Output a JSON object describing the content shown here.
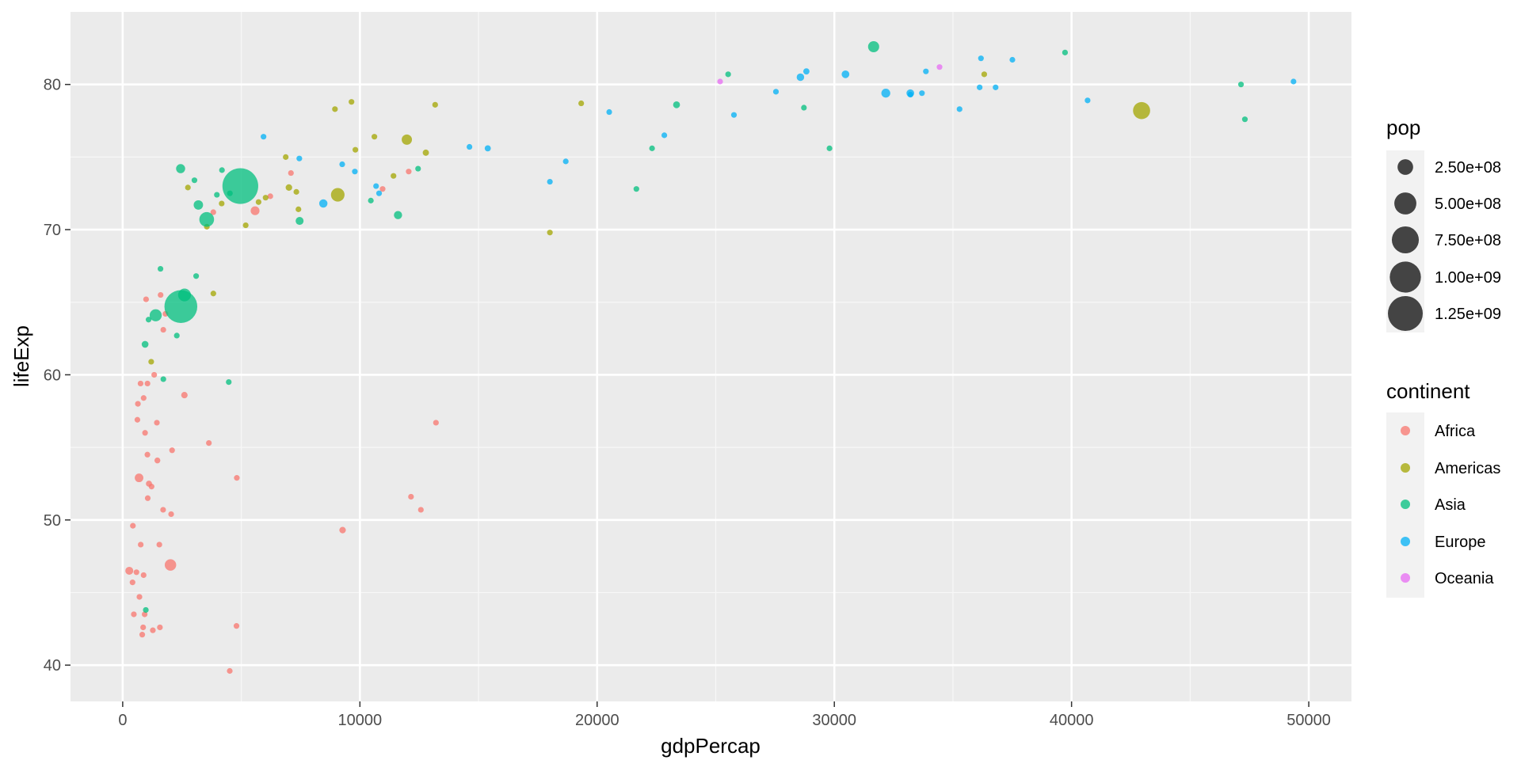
{
  "chart_data": {
    "type": "scatter",
    "title": "",
    "xlabel": "gdpPercap",
    "ylabel": "lifeExp",
    "xlim": [
      -2200,
      51800
    ],
    "ylim": [
      37.5,
      85
    ],
    "x_ticks": [
      0,
      10000,
      20000,
      30000,
      40000,
      50000
    ],
    "y_ticks": [
      40,
      50,
      60,
      70,
      80
    ],
    "grid": true,
    "legend_placement": "right",
    "size_legend": {
      "title": "pop",
      "labels": [
        "2.50e+08",
        "5.00e+08",
        "7.50e+08",
        "1.00e+09",
        "1.25e+09"
      ],
      "values": [
        250000000,
        500000000,
        750000000,
        1000000000,
        1250000000
      ]
    },
    "color_legend": {
      "title": "continent",
      "labels": [
        "Africa",
        "Americas",
        "Asia",
        "Europe",
        "Oceania"
      ]
    },
    "colors": {
      "Africa": "#F8766D",
      "Americas": "#A3A500",
      "Asia": "#00BF7D",
      "Europe": "#00B0F6",
      "Oceania": "#E76BF3"
    },
    "series": [
      {
        "name": "Africa",
        "points": [
          [
            6223,
            72.3,
            33000000
          ],
          [
            4797,
            42.7,
            12400000
          ],
          [
            1441,
            56.7,
            8100000
          ],
          [
            12570,
            50.7,
            1600000
          ],
          [
            1217,
            52.3,
            14300000
          ],
          [
            430,
            49.6,
            8400000
          ],
          [
            2042,
            50.4,
            17700000
          ],
          [
            706,
            44.7,
            4400000
          ],
          [
            1704,
            50.7,
            10200000
          ],
          [
            986,
            65.2,
            700000
          ],
          [
            278,
            46.5,
            64600000
          ],
          [
            3633,
            55.3,
            3800000
          ],
          [
            1545,
            48.3,
            18000000
          ],
          [
            2082,
            54.8,
            500000
          ],
          [
            5581,
            71.3,
            80300000
          ],
          [
            12154,
            51.6,
            600000
          ],
          [
            641,
            58.0,
            4900000
          ],
          [
            690,
            52.9,
            76500000
          ],
          [
            13206,
            56.7,
            1500000
          ],
          [
            753,
            59.4,
            1700000
          ],
          [
            1328,
            60.0,
            22900000
          ],
          [
            943,
            56.0,
            9900000
          ],
          [
            580,
            46.4,
            1500000
          ],
          [
            1463,
            54.1,
            35600000
          ],
          [
            1569,
            42.6,
            2000000
          ],
          [
            415,
            45.7,
            3200000
          ],
          [
            12057,
            74.0,
            6000000
          ],
          [
            1045,
            59.4,
            19200000
          ],
          [
            760,
            48.3,
            13300000
          ],
          [
            1042,
            54.5,
            12000000
          ],
          [
            1803,
            64.2,
            3300000
          ],
          [
            10957,
            72.8,
            1200000
          ],
          [
            3820,
            71.2,
            33800000
          ],
          [
            824,
            42.1,
            19900000
          ],
          [
            4811,
            52.9,
            2100000
          ],
          [
            620,
            56.9,
            12900000
          ],
          [
            2014,
            46.9,
            135000000
          ],
          [
            882,
            46.2,
            8900000
          ],
          [
            1598,
            65.5,
            200000
          ],
          [
            1712,
            63.1,
            12300000
          ],
          [
            862,
            42.6,
            6100000
          ],
          [
            926,
            43.5,
            9100000
          ],
          [
            9270,
            49.3,
            43900000
          ],
          [
            2602,
            58.6,
            42300000
          ],
          [
            4513,
            39.6,
            1100000
          ],
          [
            1107,
            52.5,
            38100000
          ],
          [
            883,
            58.4,
            5700000
          ],
          [
            7093,
            73.9,
            10300000
          ],
          [
            1056,
            51.5,
            29200000
          ],
          [
            1271,
            42.4,
            11700000
          ],
          [
            470,
            43.5,
            12300000
          ]
        ]
      },
      {
        "name": "Americas",
        "points": [
          [
            12779,
            75.3,
            40300000
          ],
          [
            3822,
            65.6,
            9100000
          ],
          [
            9066,
            72.4,
            190000000
          ],
          [
            36319,
            80.7,
            33400000
          ],
          [
            13172,
            78.6,
            16300000
          ],
          [
            7007,
            72.9,
            44200000
          ],
          [
            9645,
            78.8,
            4100000
          ],
          [
            8948,
            78.3,
            11400000
          ],
          [
            6025,
            72.2,
            9300000
          ],
          [
            6873,
            75.0,
            13800000
          ],
          [
            5728,
            71.9,
            6900000
          ],
          [
            5186,
            70.3,
            12600000
          ],
          [
            1202,
            60.9,
            8500000
          ],
          [
            3548,
            70.2,
            7500000
          ],
          [
            7321,
            72.6,
            2800000
          ],
          [
            11978,
            76.2,
            108700000
          ],
          [
            2749,
            72.9,
            5700000
          ],
          [
            9809,
            75.5,
            3200000
          ],
          [
            4173,
            71.8,
            6700000
          ],
          [
            7409,
            71.4,
            28700000
          ],
          [
            19329,
            78.7,
            3900000
          ],
          [
            18009,
            69.8,
            1100000
          ],
          [
            42952,
            78.2,
            301100000
          ],
          [
            10611,
            76.4,
            3400000
          ],
          [
            11416,
            73.7,
            26100000
          ]
        ]
      },
      {
        "name": "Asia",
        "points": [
          [
            975,
            43.8,
            31900000
          ],
          [
            29796,
            75.6,
            700000
          ],
          [
            1391,
            64.1,
            150400000
          ],
          [
            1714,
            59.7,
            14100000
          ],
          [
            4959,
            73.0,
            1318700000
          ],
          [
            39725,
            82.2,
            6900000
          ],
          [
            2452,
            64.7,
            1110400000
          ],
          [
            3541,
            70.7,
            223500000
          ],
          [
            11606,
            71.0,
            69500000
          ],
          [
            4471,
            59.5,
            27500000
          ],
          [
            25523,
            80.7,
            6400000
          ],
          [
            31656,
            82.6,
            127500000
          ],
          [
            4519,
            72.5,
            6100000
          ],
          [
            1593,
            67.3,
            23300000
          ],
          [
            23348,
            78.6,
            49000000
          ],
          [
            47307,
            77.6,
            2500000
          ],
          [
            10461,
            72.0,
            3900000
          ],
          [
            12452,
            74.2,
            24800000
          ],
          [
            3096,
            66.8,
            2900000
          ],
          [
            944,
            62.1,
            47800000
          ],
          [
            1091,
            63.8,
            28900000
          ],
          [
            22316,
            75.6,
            3200000
          ],
          [
            2606,
            65.5,
            169300000
          ],
          [
            3190,
            71.7,
            91100000
          ],
          [
            21655,
            72.8,
            27600000
          ],
          [
            47143,
            80.0,
            4600000
          ],
          [
            3970,
            72.4,
            20400000
          ],
          [
            4185,
            74.1,
            19300000
          ],
          [
            28718,
            78.4,
            23200000
          ],
          [
            7458,
            70.6,
            65100000
          ],
          [
            2442,
            74.2,
            85300000
          ],
          [
            3025,
            73.4,
            4000000
          ],
          [
            2281,
            62.7,
            22200000
          ]
        ]
      },
      {
        "name": "Europe",
        "points": [
          [
            5937,
            76.4,
            3600000
          ],
          [
            36126,
            79.8,
            8200000
          ],
          [
            33693,
            79.4,
            10400000
          ],
          [
            7446,
            74.9,
            4600000
          ],
          [
            10681,
            73.0,
            7300000
          ],
          [
            14619,
            75.7,
            4500000
          ],
          [
            22833,
            76.5,
            10200000
          ],
          [
            35278,
            78.3,
            5500000
          ],
          [
            33207,
            79.3,
            5200000
          ],
          [
            30470,
            80.7,
            61100000
          ],
          [
            32170,
            79.4,
            82400000
          ],
          [
            27538,
            79.5,
            10700000
          ],
          [
            18009,
            73.3,
            10000000
          ],
          [
            36181,
            81.8,
            300000
          ],
          [
            40676,
            78.9,
            4100000
          ],
          [
            28570,
            80.5,
            58100000
          ],
          [
            9254,
            74.5,
            700000
          ],
          [
            36798,
            79.8,
            16600000
          ],
          [
            49357,
            80.2,
            4600000
          ],
          [
            15390,
            75.6,
            38500000
          ],
          [
            20510,
            78.1,
            10600000
          ],
          [
            10808,
            72.5,
            22300000
          ],
          [
            9787,
            74.0,
            10200000
          ],
          [
            18678,
            74.7,
            5400000
          ],
          [
            25768,
            77.9,
            2000000
          ],
          [
            28821,
            80.9,
            40400000
          ],
          [
            33860,
            80.9,
            9000000
          ],
          [
            37506,
            81.7,
            7600000
          ],
          [
            8458,
            71.8,
            71200000
          ],
          [
            33203,
            79.4,
            60800000
          ]
        ]
      },
      {
        "name": "Oceania",
        "points": [
          [
            34435,
            81.2,
            20400000
          ],
          [
            25185,
            80.2,
            4100000
          ]
        ]
      }
    ]
  }
}
